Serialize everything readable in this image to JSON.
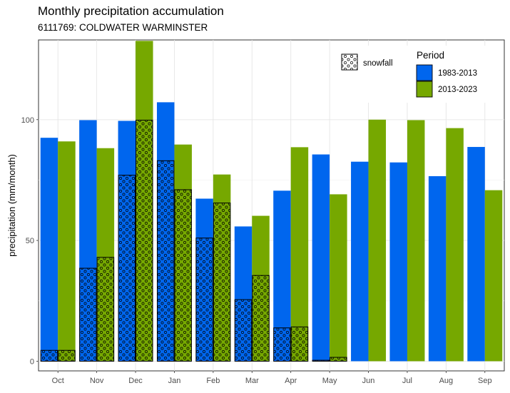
{
  "chart_data": {
    "type": "bar",
    "title": "Monthly precipitation accumulation",
    "subtitle": "6111769: COLDWATER WARMINSTER",
    "xlabel": "",
    "ylabel": "precipitation (mm/month)",
    "ylim": [
      -4,
      133
    ],
    "yticks": [
      0,
      50,
      100
    ],
    "categories": [
      "Oct",
      "Nov",
      "Dec",
      "Jan",
      "Feb",
      "Mar",
      "Apr",
      "May",
      "Jun",
      "Jul",
      "Aug",
      "Sep"
    ],
    "series": [
      {
        "name": "1983-2013",
        "color": "#0066ee",
        "values": [
          92.5,
          99.8,
          99.5,
          107.2,
          67.3,
          55.8,
          70.6,
          85.6,
          82.6,
          82.3,
          76.6,
          88.7
        ],
        "snowfall": [
          4.5,
          38.5,
          77.0,
          83.0,
          51.0,
          25.5,
          13.8,
          0.4,
          0,
          0,
          0,
          0
        ]
      },
      {
        "name": "2013-2023",
        "color": "#76a800",
        "values": [
          91.0,
          88.2,
          132.6,
          89.7,
          77.3,
          60.2,
          88.6,
          69.1,
          100.0,
          99.8,
          96.5,
          70.8
        ],
        "snowfall": [
          4.5,
          43.0,
          99.8,
          71.0,
          65.5,
          35.5,
          14.2,
          1.6,
          0,
          0,
          0,
          0
        ]
      }
    ],
    "grid": true,
    "legend": {
      "position": "top-right",
      "title": "Period",
      "snowfall_label": "snowfall",
      "pattern_icon": "dotted-pattern-icon"
    }
  }
}
